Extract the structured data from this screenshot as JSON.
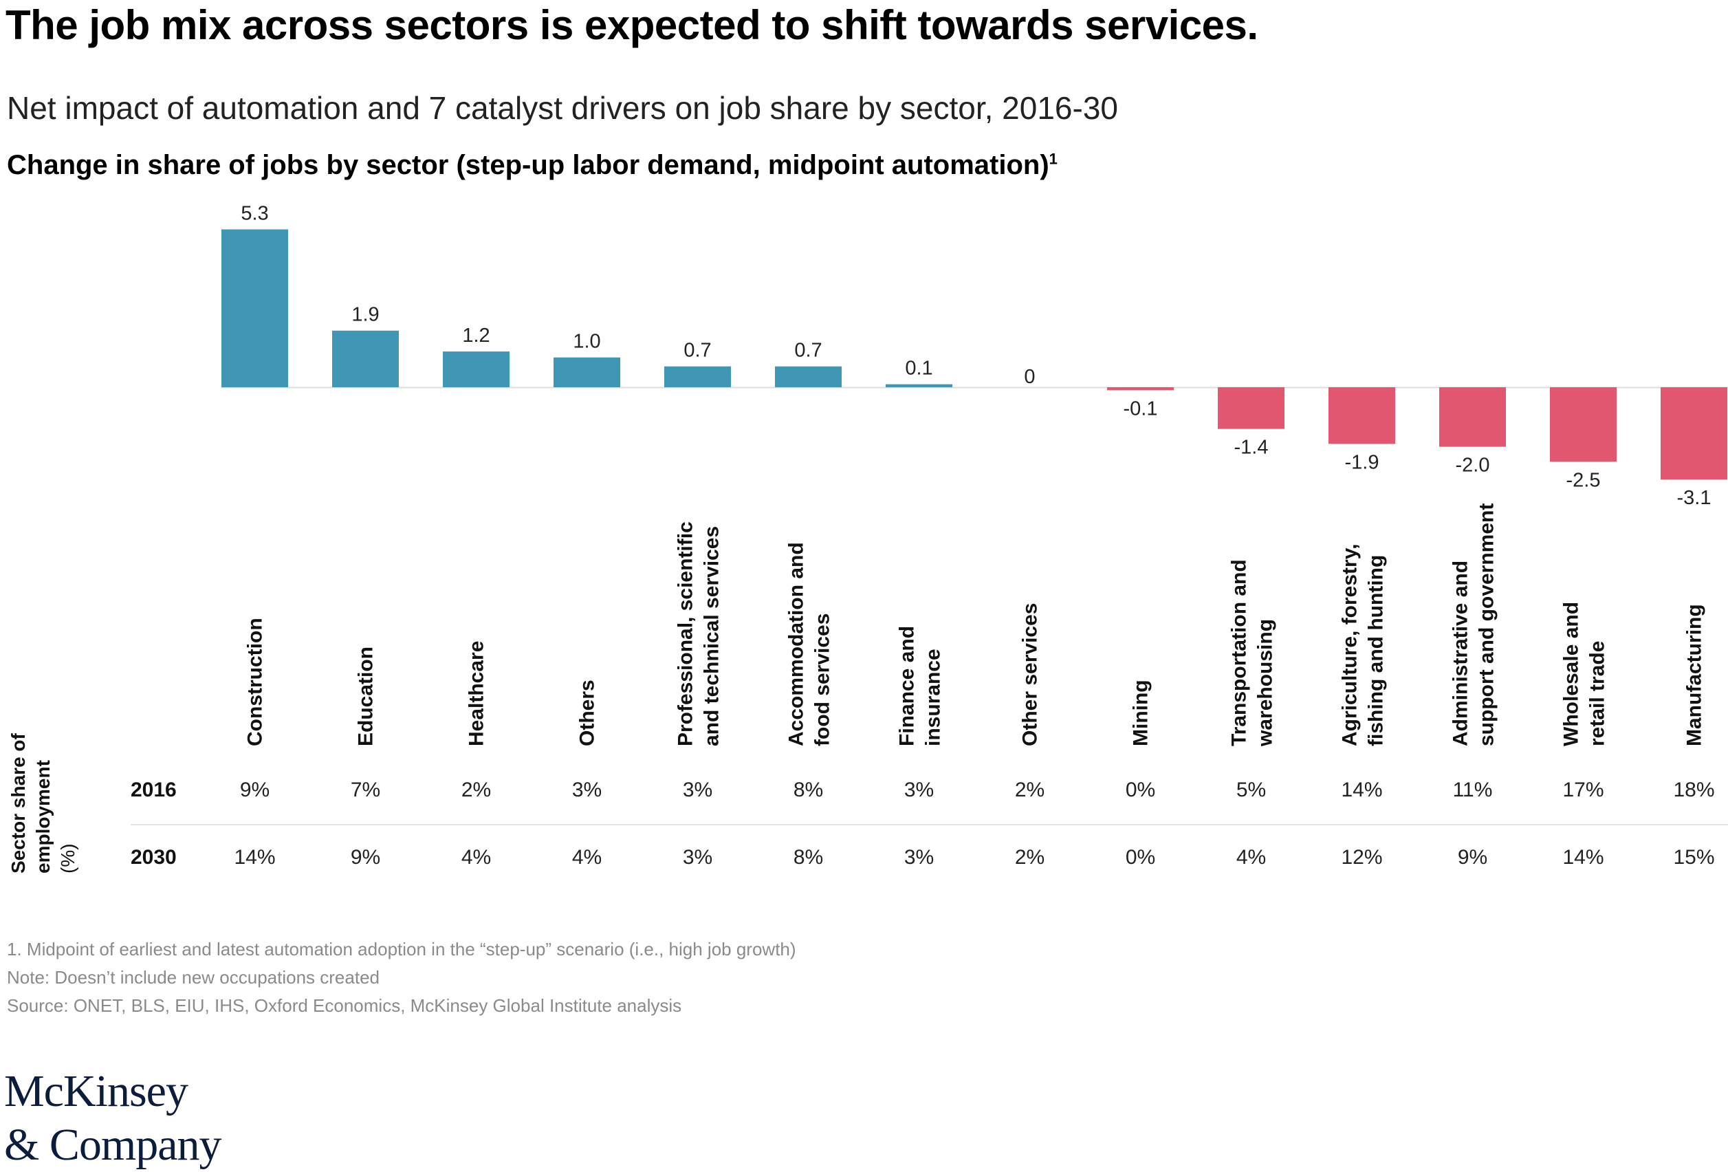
{
  "title": "The job mix across sectors is expected to shift towards services.",
  "subtitle": "Net impact of automation and 7 catalyst drivers on job share by sector, 2016-30",
  "chart_title": "Change in share of jobs by sector (step-up labor demand, midpoint automation)",
  "chart_title_footnote": "1",
  "chart_data": {
    "type": "bar",
    "categories": [
      "Construction",
      "Education",
      "Healthcare",
      "Others",
      "Professional, scientific and technical services",
      "Accommodation and food services",
      "Finance and insurance",
      "Other services",
      "Mining",
      "Transportation and warehousing",
      "Agriculture, forestry, fishing and hunting",
      "Administrative and support and government",
      "Wholesale and retail trade",
      "Manufacturing"
    ],
    "category_label_lines": [
      [
        "Construction"
      ],
      [
        "Education"
      ],
      [
        "Healthcare"
      ],
      [
        "Others"
      ],
      [
        "Professional, scientific",
        "and technical services"
      ],
      [
        "Accommodation and",
        "food services"
      ],
      [
        "Finance and",
        "insurance"
      ],
      [
        "Other services"
      ],
      [
        "Mining"
      ],
      [
        "Transportation and",
        "warehousing"
      ],
      [
        "Agriculture, forestry,",
        "fishing and hunting"
      ],
      [
        "Administrative and",
        "support and government"
      ],
      [
        "Wholesale and",
        "retail trade"
      ],
      [
        "Manufacturing"
      ]
    ],
    "values": [
      5.3,
      1.9,
      1.2,
      1.0,
      0.7,
      0.7,
      0.1,
      0,
      -0.1,
      -1.4,
      -1.9,
      -2.0,
      -2.5,
      -3.1
    ],
    "value_labels": [
      "5.3",
      "1.9",
      "1.2",
      "1.0",
      "0.7",
      "0.7",
      "0.1",
      "0",
      "-0.1",
      "-1.4",
      "-1.9",
      "-2.0",
      "-2.5",
      "-3.1"
    ],
    "ylim": [
      -3.1,
      5.3
    ],
    "colors": {
      "positive": "#4096b5",
      "negative": "#e3566f",
      "zero_line": "#dddddd",
      "row_divider": "#e2e2e2"
    },
    "table": {
      "row_header_lines": [
        "Sector share of",
        "employment"
      ],
      "row_header_unit": "(%)",
      "rows": [
        {
          "year": "2016",
          "values": [
            "9%",
            "7%",
            "2%",
            "3%",
            "3%",
            "8%",
            "3%",
            "2%",
            "0%",
            "5%",
            "14%",
            "11%",
            "17%",
            "18%"
          ]
        },
        {
          "year": "2030",
          "values": [
            "14%",
            "9%",
            "4%",
            "4%",
            "3%",
            "8%",
            "3%",
            "2%",
            "0%",
            "4%",
            "12%",
            "9%",
            "14%",
            "15%"
          ]
        }
      ]
    }
  },
  "notes": [
    "1. Midpoint of earliest and latest automation adoption in the “step-up” scenario (i.e., high job growth)",
    "Note: Doesn’t include new occupations created",
    "Source: ONET, BLS, EIU, IHS, Oxford Economics, McKinsey Global Institute analysis"
  ],
  "logo": {
    "line1": "McKinsey",
    "line2": "& Company"
  }
}
